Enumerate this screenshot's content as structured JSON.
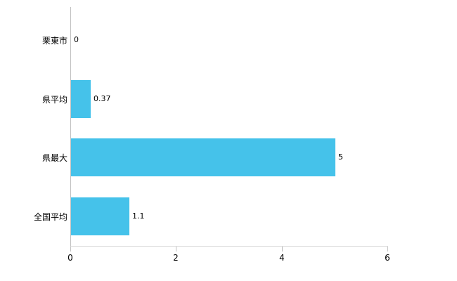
{
  "chart_data": {
    "type": "bar",
    "orientation": "horizontal",
    "title": "",
    "xlabel": "",
    "ylabel": "",
    "categories": [
      "栗東市",
      "県平均",
      "県最大",
      "全国平均"
    ],
    "values": [
      0,
      0.37,
      5,
      1.1
    ],
    "value_labels": [
      "0",
      "0.37",
      "5",
      "1.1"
    ],
    "xlim": [
      0,
      6
    ],
    "x_ticks": [
      0,
      2,
      4,
      6
    ],
    "x_tick_labels": [
      "0",
      "2",
      "4",
      "6"
    ],
    "grid": false,
    "legend": "none",
    "bar_color": "#45c2ea",
    "axis_color": "#c0c0c0",
    "text_color": "#000000"
  }
}
